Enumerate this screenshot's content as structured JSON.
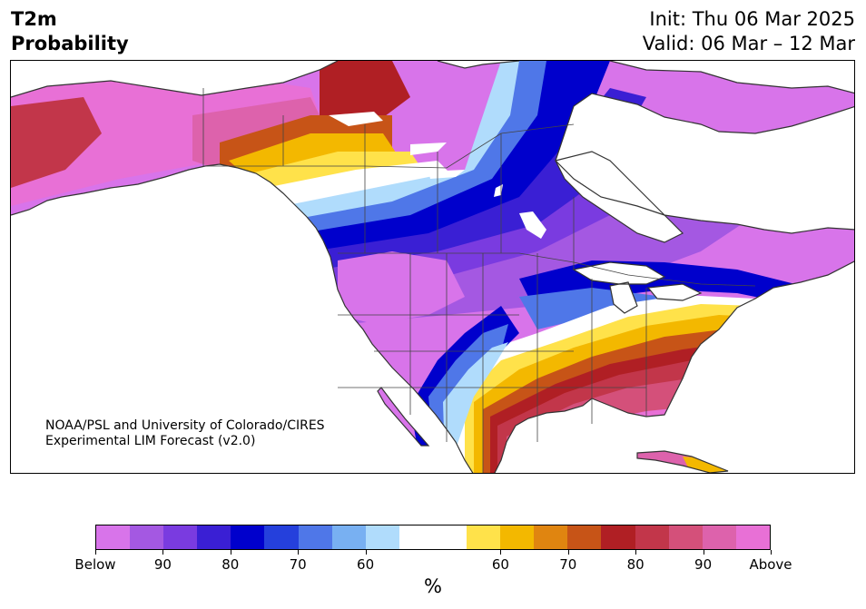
{
  "header": {
    "variable": "T2m",
    "product": "Probability",
    "init": "Init: Thu 06 Mar 2025",
    "valid": "Valid: 06 Mar – 12 Mar"
  },
  "credit": {
    "line1": "NOAA/PSL and University of Colorado/CIRES",
    "line2": "Experimental LIM Forecast (v2.0)"
  },
  "colorbar": {
    "colors": [
      "#d874ea",
      "#a458e2",
      "#7a3be0",
      "#3a1fd4",
      "#0000cc",
      "#2540dc",
      "#4f77e8",
      "#78b0f2",
      "#b0dcfc",
      "#ffffff",
      "#ffffff",
      "#ffe24a",
      "#f3b800",
      "#e08510",
      "#c75417",
      "#b01f24",
      "#c2364a",
      "#d4507a",
      "#dd62ac",
      "#e870d6"
    ],
    "labels": [
      "Below",
      "90",
      "80",
      "70",
      "60",
      "60",
      "70",
      "80",
      "90",
      "Above"
    ],
    "unit": "%"
  },
  "map": {
    "region": "North America",
    "legend_categories": [
      "Below",
      "Above"
    ],
    "ocean_color": "#ffffff",
    "coastline_color": "#333333"
  }
}
